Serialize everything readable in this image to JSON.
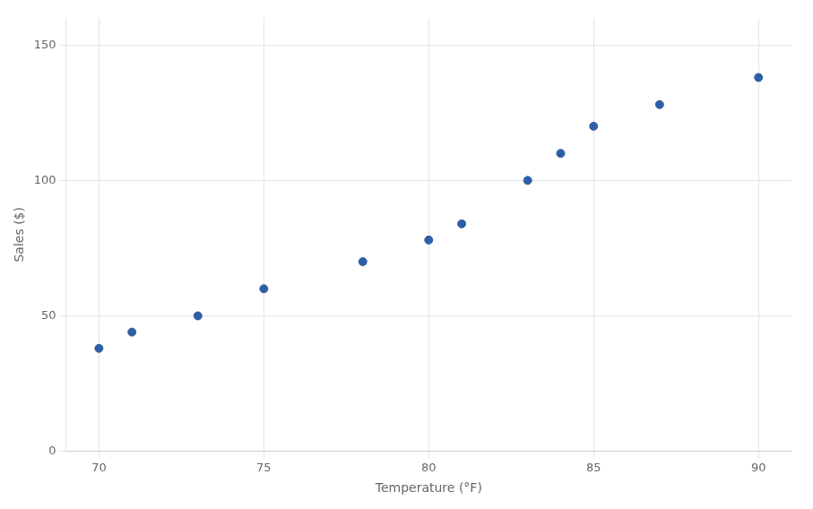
{
  "chart_data": {
    "type": "scatter",
    "x": [
      70,
      71,
      73,
      75,
      78,
      80,
      81,
      83,
      84,
      85,
      87,
      90
    ],
    "y": [
      38,
      44,
      50,
      60,
      70,
      78,
      84,
      100,
      110,
      120,
      128,
      138
    ],
    "color": "#2e5fa3",
    "xlabel": "Temperature (°F)",
    "ylabel": "Sales ($)",
    "xlim": [
      69,
      91
    ],
    "ylim": [
      0,
      160
    ],
    "xticks": [
      70,
      75,
      80,
      85,
      90
    ],
    "yticks": [
      0,
      50,
      100,
      150
    ],
    "grid": true
  }
}
